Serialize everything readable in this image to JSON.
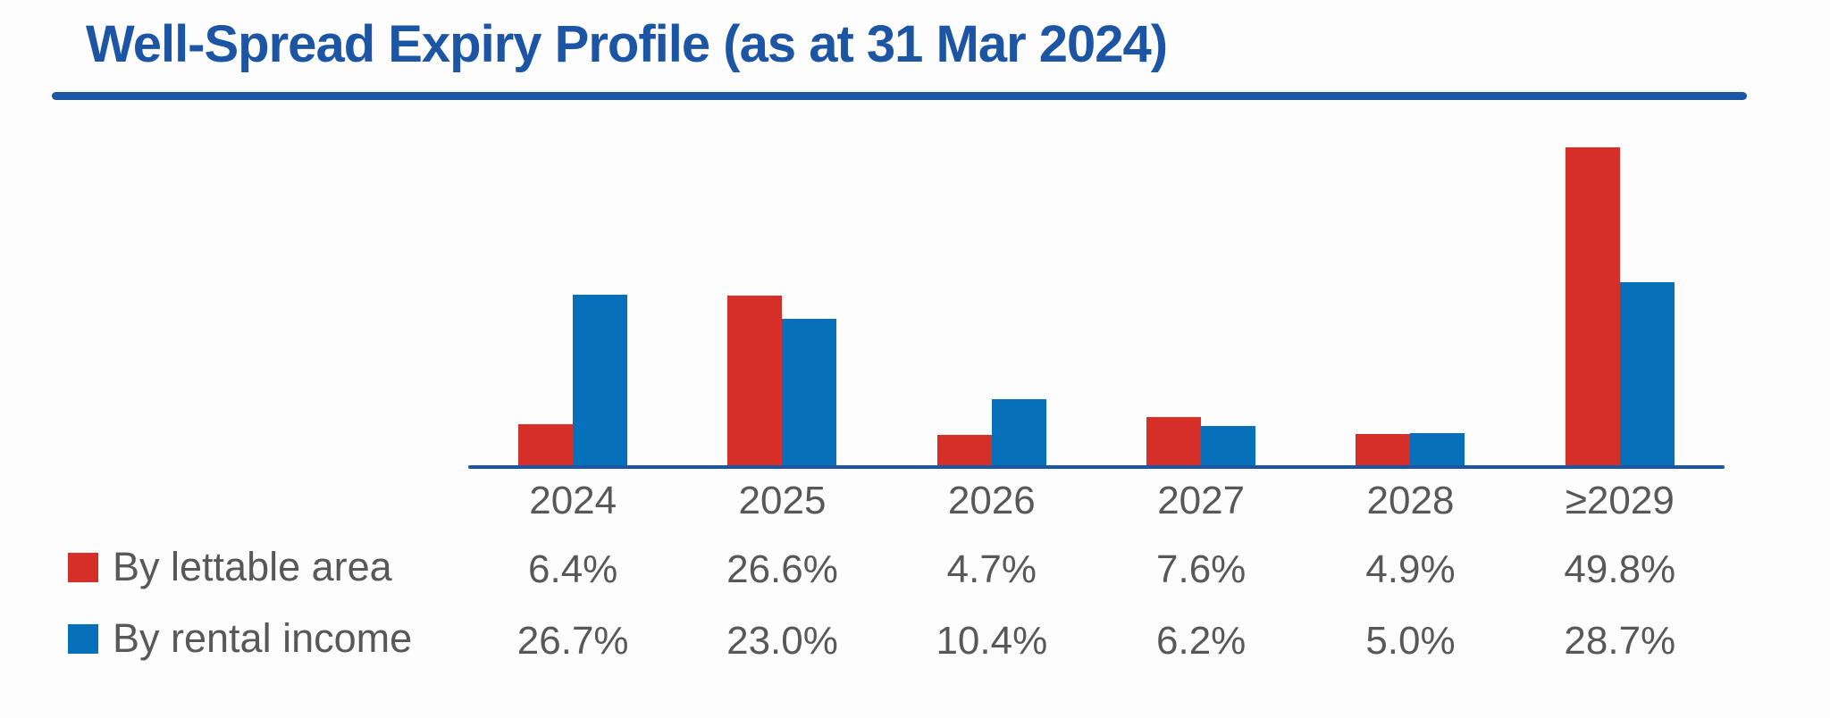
{
  "page": {
    "background_color": "#FDFDFD",
    "accent_blue": "#1D55A5",
    "text_gray": "#58585A"
  },
  "header": {
    "title": "Well-Spread Expiry Profile (as at 31 Mar 2024)",
    "title_color": "#1D55A5"
  },
  "chart_data": {
    "type": "bar",
    "title": "Well-Spread Expiry Profile (as at 31 Mar 2024)",
    "categories": [
      "2024",
      "2025",
      "2026",
      "2027",
      "2028",
      "≥2029"
    ],
    "series": [
      {
        "name": "By lettable area",
        "color": "#D62F27",
        "values": [
          6.4,
          26.6,
          4.7,
          7.6,
          4.9,
          49.8
        ],
        "value_labels": [
          "6.4%",
          "26.6%",
          "4.7%",
          "7.6%",
          "4.9%",
          "49.8%"
        ]
      },
      {
        "name": "By rental income",
        "color": "#0670BA",
        "values": [
          26.7,
          23.0,
          10.4,
          6.2,
          5.0,
          28.7
        ],
        "value_labels": [
          "26.7%",
          "23.0%",
          "10.4%",
          "6.2%",
          "5.0%",
          "28.7%"
        ]
      }
    ],
    "unit": "%",
    "xlabel": "",
    "ylabel": "",
    "ylim": [
      0,
      52
    ],
    "grid": false,
    "y_axis_visible": false,
    "legend_position": "bottom-left, as table row headers for value rows",
    "axis_line_color": "#1D55A5"
  }
}
